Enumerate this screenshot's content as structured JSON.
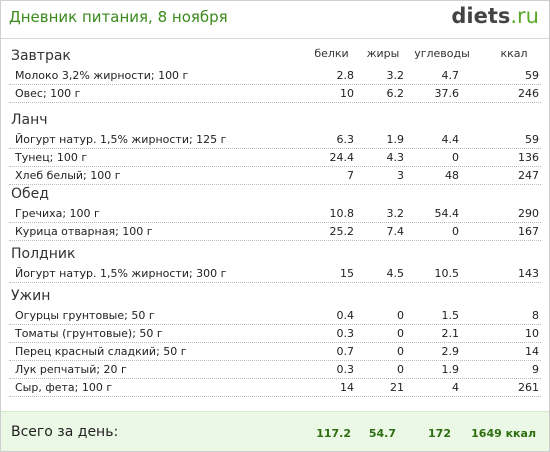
{
  "header": {
    "title": "Дневник питания, 8 ноября",
    "logo_main": "diets",
    "logo_suffix": ".ru"
  },
  "columns": {
    "protein": "белки",
    "fat": "жиры",
    "carbs": "углеводы",
    "kcal": "ккал"
  },
  "sections": [
    {
      "title": "Завтрак",
      "rows": [
        {
          "name": "Молоко 3,2% жирности; 100 г",
          "protein": "2.8",
          "fat": "3.2",
          "carbs": "4.7",
          "kcal": "59"
        },
        {
          "name": "Овес; 100 г",
          "protein": "10",
          "fat": "6.2",
          "carbs": "37.6",
          "kcal": "246"
        }
      ]
    },
    {
      "title": "Ланч",
      "rows": [
        {
          "name": "Йогурт натур. 1,5% жирности; 125 г",
          "protein": "6.3",
          "fat": "1.9",
          "carbs": "4.4",
          "kcal": "59"
        },
        {
          "name": "Тунец; 100 г",
          "protein": "24.4",
          "fat": "4.3",
          "carbs": "0",
          "kcal": "136"
        },
        {
          "name": "Хлеб белый; 100 г",
          "protein": "7",
          "fat": "3",
          "carbs": "48",
          "kcal": "247"
        }
      ]
    },
    {
      "title": "Обед",
      "rows": [
        {
          "name": "Гречиха; 100 г",
          "protein": "10.8",
          "fat": "3.2",
          "carbs": "54.4",
          "kcal": "290"
        },
        {
          "name": "Курица отварная; 100 г",
          "protein": "25.2",
          "fat": "7.4",
          "carbs": "0",
          "kcal": "167"
        }
      ]
    },
    {
      "title": "Полдник",
      "rows": [
        {
          "name": "Йогурт натур. 1,5% жирности; 300 г",
          "protein": "15",
          "fat": "4.5",
          "carbs": "10.5",
          "kcal": "143"
        }
      ]
    },
    {
      "title": "Ужин",
      "rows": [
        {
          "name": "Огурцы грунтовые; 50 г",
          "protein": "0.4",
          "fat": "0",
          "carbs": "1.5",
          "kcal": "8"
        },
        {
          "name": "Томаты (грунтовые); 50 г",
          "protein": "0.3",
          "fat": "0",
          "carbs": "2.1",
          "kcal": "10"
        },
        {
          "name": "Перец красный сладкий; 50 г",
          "protein": "0.7",
          "fat": "0",
          "carbs": "2.9",
          "kcal": "14"
        },
        {
          "name": "Лук репчатый; 20 г",
          "protein": "0.3",
          "fat": "0",
          "carbs": "1.9",
          "kcal": "9"
        },
        {
          "name": "Сыр, фета; 100 г",
          "protein": "14",
          "fat": "21",
          "carbs": "4",
          "kcal": "261"
        }
      ]
    }
  ],
  "footer": {
    "label": "Всего за день:",
    "protein": "117.2",
    "fat": "54.7",
    "carbs": "172",
    "kcal": "1649 ккал"
  }
}
